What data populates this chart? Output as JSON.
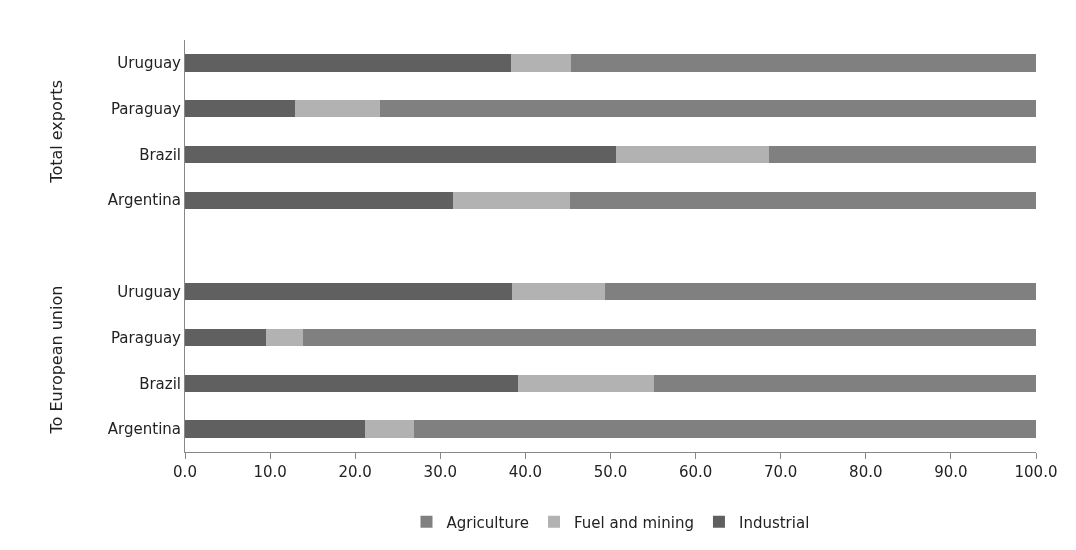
{
  "chart_data": {
    "type": "bar",
    "orientation": "horizontal",
    "stacked": true,
    "categories": [
      "Uruguay",
      "Paraguay",
      "Brazil",
      "Argentina",
      null,
      "Uruguay",
      "Paraguay",
      "Brazil",
      "Argentina"
    ],
    "series": [
      {
        "name": "Industrial",
        "color": "#606060",
        "values": [
          38.3,
          12.9,
          50.6,
          31.5,
          null,
          38.4,
          9.5,
          39.1,
          21.2
        ]
      },
      {
        "name": "Fuel and mining",
        "color": "#b2b2b2",
        "values": [
          7.1,
          10.0,
          18.0,
          13.7,
          null,
          10.9,
          4.4,
          16.0,
          5.7
        ]
      },
      {
        "name": "Agriculture",
        "color": "#808080",
        "values": [
          54.6,
          77.1,
          31.4,
          54.8,
          null,
          50.7,
          86.1,
          44.9,
          73.1
        ]
      }
    ],
    "xlim": [
      0,
      100
    ],
    "xticks": [
      {
        "value": 0,
        "label": "0.0"
      },
      {
        "value": 10,
        "label": "10.0"
      },
      {
        "value": 20,
        "label": "20.0"
      },
      {
        "value": 30,
        "label": "30.0"
      },
      {
        "value": 40,
        "label": "40.0"
      },
      {
        "value": 50,
        "label": "50.0"
      },
      {
        "value": 60,
        "label": "60.0"
      },
      {
        "value": 70,
        "label": "70.0"
      },
      {
        "value": 80,
        "label": "80.0"
      },
      {
        "value": 90,
        "label": "90.0"
      },
      {
        "value": 100,
        "label": "100.0"
      }
    ],
    "annotations": [
      "Total exports",
      "To European union"
    ],
    "grid": false,
    "legend": "bottom"
  }
}
